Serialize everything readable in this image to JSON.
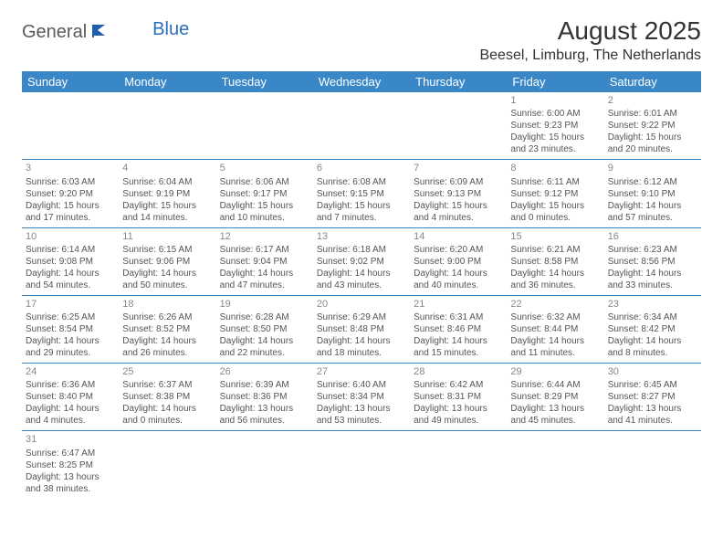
{
  "logo": {
    "part1": "General",
    "part2": "Blue"
  },
  "title": "August 2025",
  "location": "Beesel, Limburg, The Netherlands",
  "headerColor": "#3a87c8",
  "dayHeaders": [
    "Sunday",
    "Monday",
    "Tuesday",
    "Wednesday",
    "Thursday",
    "Friday",
    "Saturday"
  ],
  "weeks": [
    [
      null,
      null,
      null,
      null,
      null,
      {
        "n": "1",
        "sr": "Sunrise: 6:00 AM",
        "ss": "Sunset: 9:23 PM",
        "dl": "Daylight: 15 hours and 23 minutes."
      },
      {
        "n": "2",
        "sr": "Sunrise: 6:01 AM",
        "ss": "Sunset: 9:22 PM",
        "dl": "Daylight: 15 hours and 20 minutes."
      }
    ],
    [
      {
        "n": "3",
        "sr": "Sunrise: 6:03 AM",
        "ss": "Sunset: 9:20 PM",
        "dl": "Daylight: 15 hours and 17 minutes."
      },
      {
        "n": "4",
        "sr": "Sunrise: 6:04 AM",
        "ss": "Sunset: 9:19 PM",
        "dl": "Daylight: 15 hours and 14 minutes."
      },
      {
        "n": "5",
        "sr": "Sunrise: 6:06 AM",
        "ss": "Sunset: 9:17 PM",
        "dl": "Daylight: 15 hours and 10 minutes."
      },
      {
        "n": "6",
        "sr": "Sunrise: 6:08 AM",
        "ss": "Sunset: 9:15 PM",
        "dl": "Daylight: 15 hours and 7 minutes."
      },
      {
        "n": "7",
        "sr": "Sunrise: 6:09 AM",
        "ss": "Sunset: 9:13 PM",
        "dl": "Daylight: 15 hours and 4 minutes."
      },
      {
        "n": "8",
        "sr": "Sunrise: 6:11 AM",
        "ss": "Sunset: 9:12 PM",
        "dl": "Daylight: 15 hours and 0 minutes."
      },
      {
        "n": "9",
        "sr": "Sunrise: 6:12 AM",
        "ss": "Sunset: 9:10 PM",
        "dl": "Daylight: 14 hours and 57 minutes."
      }
    ],
    [
      {
        "n": "10",
        "sr": "Sunrise: 6:14 AM",
        "ss": "Sunset: 9:08 PM",
        "dl": "Daylight: 14 hours and 54 minutes."
      },
      {
        "n": "11",
        "sr": "Sunrise: 6:15 AM",
        "ss": "Sunset: 9:06 PM",
        "dl": "Daylight: 14 hours and 50 minutes."
      },
      {
        "n": "12",
        "sr": "Sunrise: 6:17 AM",
        "ss": "Sunset: 9:04 PM",
        "dl": "Daylight: 14 hours and 47 minutes."
      },
      {
        "n": "13",
        "sr": "Sunrise: 6:18 AM",
        "ss": "Sunset: 9:02 PM",
        "dl": "Daylight: 14 hours and 43 minutes."
      },
      {
        "n": "14",
        "sr": "Sunrise: 6:20 AM",
        "ss": "Sunset: 9:00 PM",
        "dl": "Daylight: 14 hours and 40 minutes."
      },
      {
        "n": "15",
        "sr": "Sunrise: 6:21 AM",
        "ss": "Sunset: 8:58 PM",
        "dl": "Daylight: 14 hours and 36 minutes."
      },
      {
        "n": "16",
        "sr": "Sunrise: 6:23 AM",
        "ss": "Sunset: 8:56 PM",
        "dl": "Daylight: 14 hours and 33 minutes."
      }
    ],
    [
      {
        "n": "17",
        "sr": "Sunrise: 6:25 AM",
        "ss": "Sunset: 8:54 PM",
        "dl": "Daylight: 14 hours and 29 minutes."
      },
      {
        "n": "18",
        "sr": "Sunrise: 6:26 AM",
        "ss": "Sunset: 8:52 PM",
        "dl": "Daylight: 14 hours and 26 minutes."
      },
      {
        "n": "19",
        "sr": "Sunrise: 6:28 AM",
        "ss": "Sunset: 8:50 PM",
        "dl": "Daylight: 14 hours and 22 minutes."
      },
      {
        "n": "20",
        "sr": "Sunrise: 6:29 AM",
        "ss": "Sunset: 8:48 PM",
        "dl": "Daylight: 14 hours and 18 minutes."
      },
      {
        "n": "21",
        "sr": "Sunrise: 6:31 AM",
        "ss": "Sunset: 8:46 PM",
        "dl": "Daylight: 14 hours and 15 minutes."
      },
      {
        "n": "22",
        "sr": "Sunrise: 6:32 AM",
        "ss": "Sunset: 8:44 PM",
        "dl": "Daylight: 14 hours and 11 minutes."
      },
      {
        "n": "23",
        "sr": "Sunrise: 6:34 AM",
        "ss": "Sunset: 8:42 PM",
        "dl": "Daylight: 14 hours and 8 minutes."
      }
    ],
    [
      {
        "n": "24",
        "sr": "Sunrise: 6:36 AM",
        "ss": "Sunset: 8:40 PM",
        "dl": "Daylight: 14 hours and 4 minutes."
      },
      {
        "n": "25",
        "sr": "Sunrise: 6:37 AM",
        "ss": "Sunset: 8:38 PM",
        "dl": "Daylight: 14 hours and 0 minutes."
      },
      {
        "n": "26",
        "sr": "Sunrise: 6:39 AM",
        "ss": "Sunset: 8:36 PM",
        "dl": "Daylight: 13 hours and 56 minutes."
      },
      {
        "n": "27",
        "sr": "Sunrise: 6:40 AM",
        "ss": "Sunset: 8:34 PM",
        "dl": "Daylight: 13 hours and 53 minutes."
      },
      {
        "n": "28",
        "sr": "Sunrise: 6:42 AM",
        "ss": "Sunset: 8:31 PM",
        "dl": "Daylight: 13 hours and 49 minutes."
      },
      {
        "n": "29",
        "sr": "Sunrise: 6:44 AM",
        "ss": "Sunset: 8:29 PM",
        "dl": "Daylight: 13 hours and 45 minutes."
      },
      {
        "n": "30",
        "sr": "Sunrise: 6:45 AM",
        "ss": "Sunset: 8:27 PM",
        "dl": "Daylight: 13 hours and 41 minutes."
      }
    ],
    [
      {
        "n": "31",
        "sr": "Sunrise: 6:47 AM",
        "ss": "Sunset: 8:25 PM",
        "dl": "Daylight: 13 hours and 38 minutes."
      },
      null,
      null,
      null,
      null,
      null,
      null
    ]
  ]
}
